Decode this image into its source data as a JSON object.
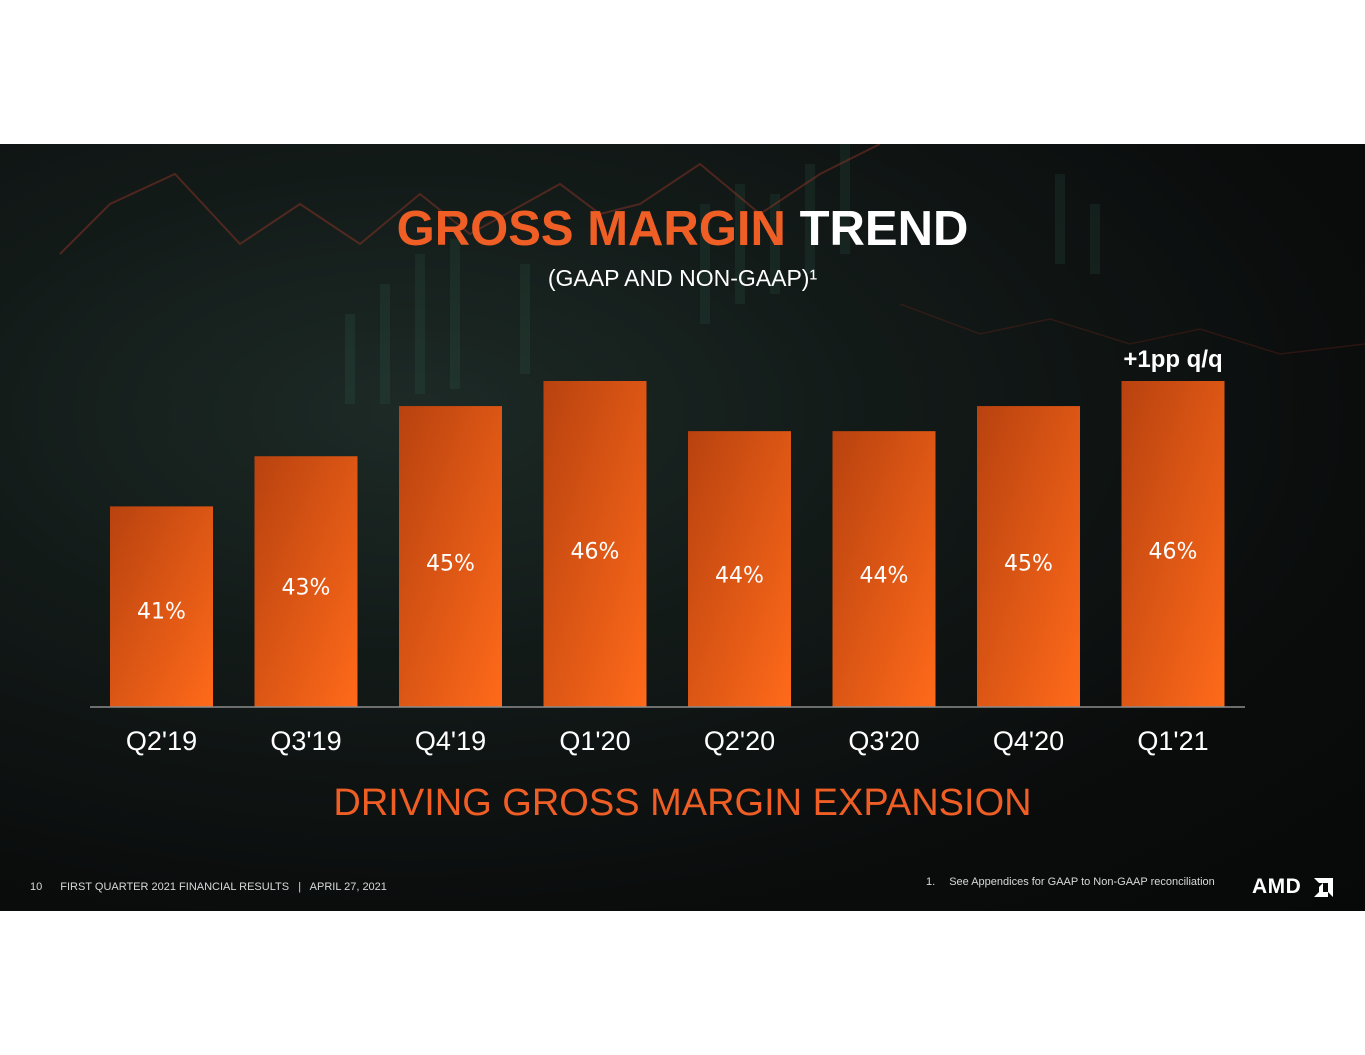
{
  "slide": {
    "title_orange": "GROSS MARGIN",
    "title_white": "TREND",
    "subtitle": "(GAAP AND NON-GAAP)¹",
    "annotation": "+1pp q/q",
    "tagline": "DRIVING GROSS MARGIN EXPANSION",
    "page_number": "10",
    "footer": "FIRST QUARTER 2021 FINANCIAL RESULTS   |   APRIL 27, 2021",
    "footnote_number": "1.",
    "footnote_text": "See Appendices for GAAP to Non-GAAP reconciliation",
    "logo_text": "AMD"
  },
  "colors": {
    "accent": "#ef5f25",
    "bar_top_left": "#b8420f",
    "bar_bottom_right": "#ff6a1a",
    "background": "#0b0d0d"
  },
  "chart_data": {
    "type": "bar",
    "categories": [
      "Q2'19",
      "Q3'19",
      "Q4'19",
      "Q1'20",
      "Q2'20",
      "Q3'20",
      "Q4'20",
      "Q1'21"
    ],
    "values": [
      41,
      43,
      45,
      46,
      44,
      44,
      45,
      46
    ],
    "data_labels": [
      "41%",
      "43%",
      "45%",
      "46%",
      "44%",
      "44%",
      "45%",
      "46%"
    ],
    "title": "GROSS MARGIN TREND",
    "subtitle": "(GAAP AND NON-GAAP)¹",
    "annotation": {
      "category": "Q1'21",
      "text": "+1pp q/q"
    },
    "ylim": [
      33,
      46
    ],
    "grid": false,
    "legend": "none",
    "xlabel": "",
    "ylabel": ""
  }
}
